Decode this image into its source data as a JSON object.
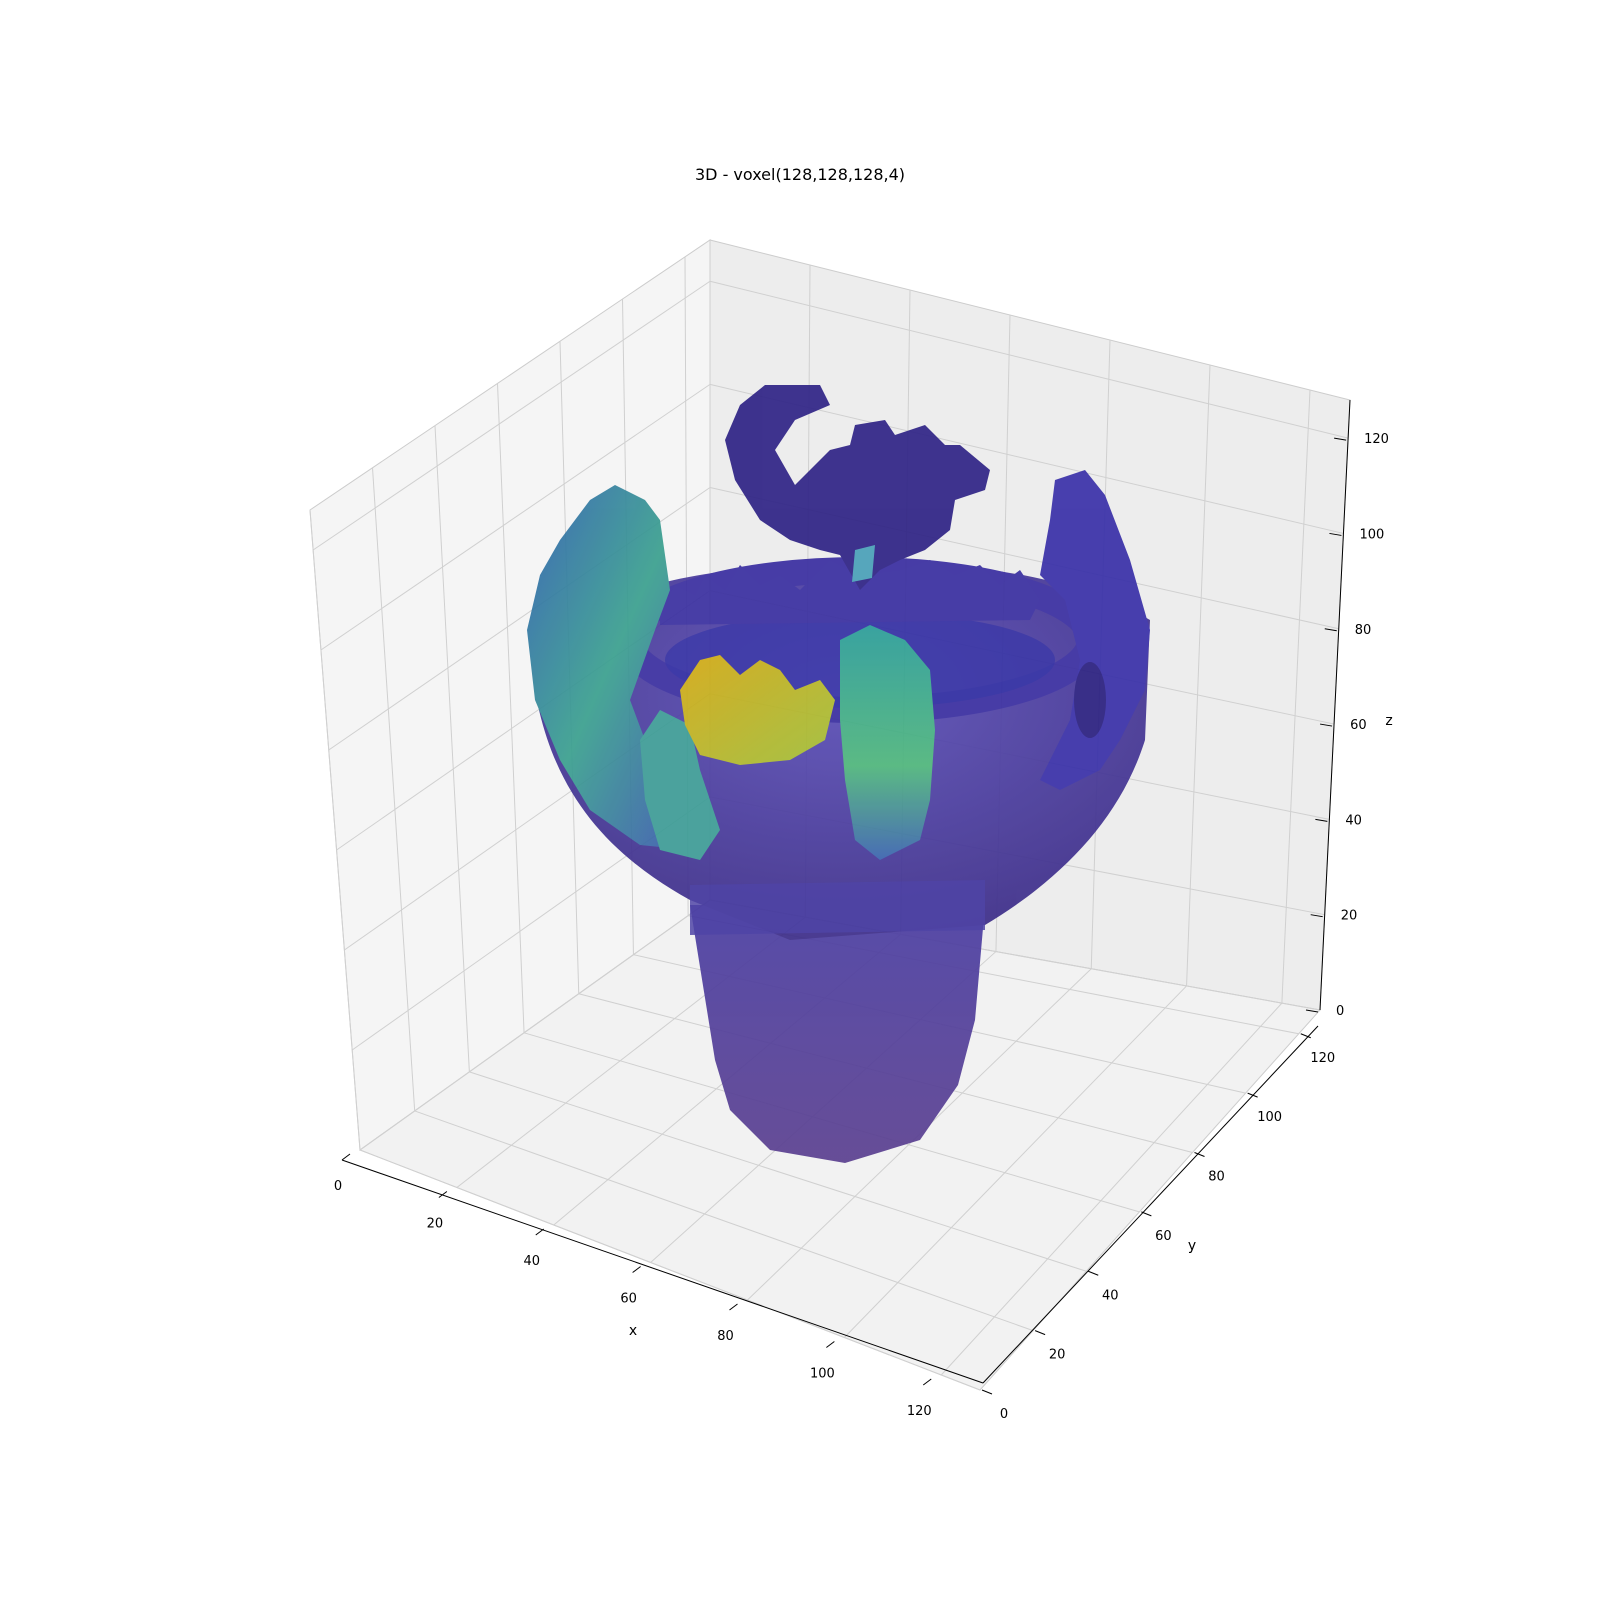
{
  "chart_data": {
    "type": "voxel-3d",
    "title": "3D - voxel(128,128,128,4)",
    "xlabel": "x",
    "ylabel": "y",
    "zlabel": "z",
    "xlim": [
      0,
      128
    ],
    "ylim": [
      0,
      128
    ],
    "zlim": [
      0,
      128
    ],
    "xticks": [
      "0",
      "20",
      "40",
      "60",
      "80",
      "100",
      "120"
    ],
    "yticks": [
      "0",
      "20",
      "40",
      "60",
      "80",
      "100",
      "120"
    ],
    "zticks": [
      "0",
      "20",
      "40",
      "60",
      "80",
      "100",
      "120"
    ],
    "grid": true,
    "colormap": [
      "#30123b",
      "#3b1e8c",
      "#2d2aa3",
      "#4a4cc0",
      "#3d78b8",
      "#2a9c9a",
      "#46b67c",
      "#7cc25a",
      "#c9b21c"
    ],
    "object": "voxelized ornate vase"
  }
}
